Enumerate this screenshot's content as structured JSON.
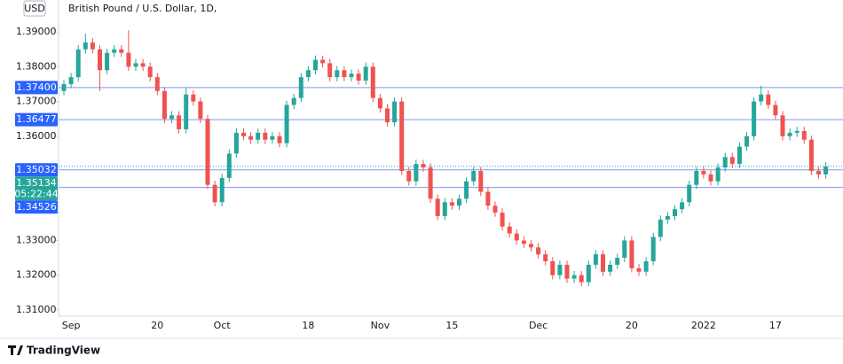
{
  "chart_data": {
    "type": "candlestick",
    "title": "British Pound / U.S. Dollar, 1D,",
    "currency": "USD",
    "brand": "TradingView",
    "up_color": "#26a69a",
    "down_color": "#ef5350",
    "ylim": [
      1.3082,
      1.3992
    ],
    "yticks": [
      {
        "value": 1.31,
        "label": "1.31000"
      },
      {
        "value": 1.32,
        "label": "1.32000"
      },
      {
        "value": 1.33,
        "label": "1.33000"
      },
      {
        "value": 1.36,
        "label": "1.36000"
      },
      {
        "value": 1.37,
        "label": "1.37000"
      },
      {
        "value": 1.38,
        "label": "1.38000"
      },
      {
        "value": 1.39,
        "label": "1.39000"
      }
    ],
    "categories": [
      null,
      "Sep",
      null,
      null,
      null,
      null,
      null,
      null,
      null,
      null,
      null,
      null,
      null,
      "20",
      null,
      null,
      null,
      null,
      null,
      null,
      null,
      null,
      "Oct",
      null,
      null,
      null,
      null,
      null,
      null,
      null,
      null,
      null,
      null,
      null,
      "18",
      null,
      null,
      null,
      null,
      null,
      null,
      null,
      null,
      null,
      "Nov",
      null,
      null,
      null,
      null,
      null,
      null,
      null,
      null,
      null,
      "15",
      null,
      null,
      null,
      null,
      null,
      null,
      null,
      null,
      null,
      null,
      null,
      "Dec",
      null,
      null,
      null,
      null,
      null,
      null,
      null,
      null,
      null,
      null,
      null,
      null,
      "20",
      null,
      null,
      null,
      null,
      null,
      null,
      null,
      null,
      null,
      "2022",
      null,
      null,
      null,
      null,
      null,
      null,
      null,
      null,
      null,
      "17",
      null,
      null,
      null,
      null,
      null,
      null,
      null
    ],
    "open": [
      1.373,
      1.375,
      1.377,
      1.385,
      1.387,
      1.385,
      1.379,
      1.384,
      1.385,
      1.384,
      1.38,
      1.381,
      1.38,
      1.377,
      1.373,
      1.365,
      1.366,
      1.362,
      1.372,
      1.37,
      1.365,
      1.346,
      1.341,
      1.348,
      1.355,
      1.361,
      1.36,
      1.359,
      1.361,
      1.359,
      1.36,
      1.358,
      1.369,
      1.371,
      1.377,
      1.379,
      1.382,
      1.381,
      1.377,
      1.379,
      1.377,
      1.378,
      1.376,
      1.38,
      1.371,
      1.368,
      1.364,
      1.37,
      1.35,
      1.347,
      1.352,
      1.351,
      1.342,
      1.337,
      1.341,
      1.34,
      1.342,
      1.347,
      1.35,
      1.344,
      1.34,
      1.338,
      1.334,
      1.332,
      1.33,
      1.329,
      1.328,
      1.326,
      1.324,
      1.32,
      1.323,
      1.319,
      1.32,
      1.318,
      1.323,
      1.326,
      1.321,
      1.323,
      1.325,
      1.33,
      1.322,
      1.321,
      1.324,
      1.331,
      1.336,
      1.337,
      1.339,
      1.341,
      1.346,
      1.35,
      1.349,
      1.347,
      1.351,
      1.354,
      1.352,
      1.357,
      1.36,
      1.37,
      1.372,
      1.369,
      1.366,
      1.36,
      1.361,
      1.3615,
      1.359,
      1.35,
      1.349
    ],
    "high": [
      1.3762,
      1.3782,
      1.3862,
      1.3895,
      1.3882,
      1.3862,
      1.3852,
      1.3862,
      1.3862,
      1.3905,
      1.3822,
      1.3822,
      1.3812,
      1.3782,
      1.3742,
      1.3672,
      1.3672,
      1.374,
      1.3732,
      1.3712,
      1.3662,
      1.3472,
      1.3492,
      1.3562,
      1.3622,
      1.3622,
      1.3612,
      1.3622,
      1.3622,
      1.3612,
      1.3612,
      1.3702,
      1.3722,
      1.3782,
      1.3802,
      1.3832,
      1.3832,
      1.3822,
      1.3802,
      1.3802,
      1.3792,
      1.3792,
      1.3812,
      1.3812,
      1.3722,
      1.3692,
      1.3712,
      1.3712,
      1.3512,
      1.3532,
      1.3532,
      1.3522,
      1.3432,
      1.3422,
      1.3422,
      1.3432,
      1.3482,
      1.3512,
      1.3512,
      1.3452,
      1.3412,
      1.3392,
      1.3352,
      1.3332,
      1.3312,
      1.3302,
      1.3292,
      1.3272,
      1.3252,
      1.3242,
      1.3242,
      1.3212,
      1.3212,
      1.3242,
      1.3272,
      1.3272,
      1.3242,
      1.3262,
      1.3312,
      1.3312,
      1.3232,
      1.3252,
      1.3322,
      1.3372,
      1.3382,
      1.3402,
      1.3422,
      1.3472,
      1.3512,
      1.3512,
      1.3502,
      1.3522,
      1.3552,
      1.3552,
      1.3582,
      1.3612,
      1.3712,
      1.3745,
      1.3732,
      1.3702,
      1.3672,
      1.3622,
      1.3627,
      1.3627,
      1.3602,
      1.3512,
      1.3525
    ],
    "low": [
      1.3718,
      1.3738,
      1.3758,
      1.3838,
      1.3838,
      1.373,
      1.3778,
      1.3828,
      1.3828,
      1.3788,
      1.3788,
      1.3788,
      1.3758,
      1.3718,
      1.3638,
      1.3638,
      1.3608,
      1.3608,
      1.3688,
      1.3638,
      1.3448,
      1.3398,
      1.3398,
      1.3468,
      1.3538,
      1.3588,
      1.3578,
      1.3578,
      1.3578,
      1.3578,
      1.3568,
      1.3568,
      1.3678,
      1.3698,
      1.3758,
      1.3778,
      1.3798,
      1.3758,
      1.3758,
      1.3758,
      1.3758,
      1.3748,
      1.3748,
      1.3698,
      1.3668,
      1.3628,
      1.3628,
      1.3488,
      1.3458,
      1.3458,
      1.3498,
      1.3408,
      1.3358,
      1.3358,
      1.3388,
      1.3388,
      1.3408,
      1.3458,
      1.3428,
      1.3388,
      1.3368,
      1.3328,
      1.3308,
      1.3288,
      1.3278,
      1.3268,
      1.3248,
      1.3228,
      1.3188,
      1.3188,
      1.3178,
      1.3178,
      1.3168,
      1.3168,
      1.3218,
      1.3198,
      1.3198,
      1.3218,
      1.3238,
      1.3208,
      1.3198,
      1.3198,
      1.3228,
      1.3298,
      1.3348,
      1.3358,
      1.3378,
      1.3398,
      1.3448,
      1.3478,
      1.3458,
      1.3458,
      1.3498,
      1.3508,
      1.3508,
      1.3558,
      1.3588,
      1.3688,
      1.3678,
      1.3648,
      1.3588,
      1.3588,
      1.3598,
      1.3578,
      1.3488,
      1.3478,
      1.3478
    ],
    "close": [
      1.375,
      1.377,
      1.385,
      1.387,
      1.385,
      1.379,
      1.384,
      1.385,
      1.384,
      1.38,
      1.381,
      1.38,
      1.377,
      1.373,
      1.365,
      1.366,
      1.362,
      1.372,
      1.37,
      1.365,
      1.346,
      1.341,
      1.348,
      1.355,
      1.361,
      1.36,
      1.359,
      1.361,
      1.359,
      1.36,
      1.358,
      1.369,
      1.371,
      1.377,
      1.379,
      1.382,
      1.381,
      1.377,
      1.379,
      1.377,
      1.378,
      1.376,
      1.38,
      1.371,
      1.368,
      1.364,
      1.37,
      1.35,
      1.347,
      1.352,
      1.351,
      1.342,
      1.337,
      1.341,
      1.34,
      1.342,
      1.347,
      1.35,
      1.344,
      1.34,
      1.338,
      1.334,
      1.332,
      1.33,
      1.329,
      1.328,
      1.326,
      1.324,
      1.32,
      1.323,
      1.319,
      1.32,
      1.318,
      1.323,
      1.326,
      1.321,
      1.323,
      1.325,
      1.33,
      1.322,
      1.321,
      1.324,
      1.331,
      1.336,
      1.337,
      1.339,
      1.341,
      1.346,
      1.35,
      1.349,
      1.347,
      1.351,
      1.354,
      1.352,
      1.357,
      1.36,
      1.37,
      1.372,
      1.369,
      1.366,
      1.36,
      1.361,
      1.3615,
      1.359,
      1.35,
      1.349,
      1.3513
    ],
    "price_lines": [
      {
        "value": 1.374,
        "label": "1.37400",
        "color": "#2962ff"
      },
      {
        "value": 1.36477,
        "label": "1.36477",
        "color": "#2962ff"
      },
      {
        "value": 1.35032,
        "label": "1.35032",
        "color": "#2962ff"
      },
      {
        "value": 1.34526,
        "label": "1.34526",
        "color": "#2962ff"
      }
    ],
    "last_price": {
      "value": 1.35134,
      "label": "1.35134",
      "countdown": "05:22:44",
      "color": "#26a69a"
    }
  }
}
